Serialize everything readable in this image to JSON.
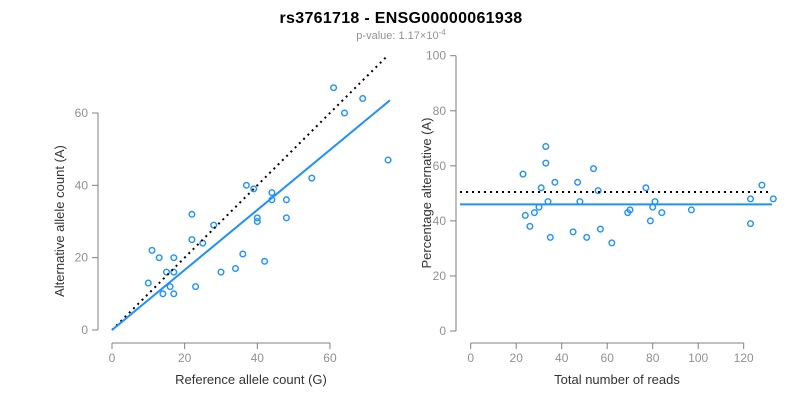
{
  "title": "rs3761718 - ENSG00000061938",
  "subtitle": {
    "base": "p-value: 1.17×10",
    "exp": "-4"
  },
  "colors": {
    "accent_blue": "#1E90FF",
    "axis_gray": "#808080",
    "tick_label_gray": "#919191",
    "axis_title_dark": "#333333",
    "reference_line_black": "#000000"
  },
  "chart_data": [
    {
      "type": "scatter",
      "title": "rs3761718 - ENSG00000061938",
      "subtitle": "p-value: 1.17×10^-4",
      "xlabel": "Reference allele count (G)",
      "ylabel": "Alternative allele count (A)",
      "xticks": [
        0,
        20,
        40,
        60
      ],
      "yticks": [
        0,
        20,
        40,
        60
      ],
      "xlim": [
        0,
        77
      ],
      "ylim": [
        0,
        70
      ],
      "grid": false,
      "point_color": "#1E90FF",
      "points": [
        [
          11,
          22
        ],
        [
          13,
          20
        ],
        [
          17,
          20
        ],
        [
          15,
          16
        ],
        [
          17,
          16
        ],
        [
          10,
          13
        ],
        [
          16,
          12
        ],
        [
          14,
          10
        ],
        [
          17,
          10
        ],
        [
          22,
          25
        ],
        [
          25,
          24
        ],
        [
          22,
          32
        ],
        [
          28,
          29
        ],
        [
          23,
          12
        ],
        [
          30,
          16
        ],
        [
          34,
          17
        ],
        [
          36,
          21
        ],
        [
          42,
          19
        ],
        [
          37,
          40
        ],
        [
          39,
          39
        ],
        [
          44,
          38
        ],
        [
          44,
          36
        ],
        [
          48,
          36
        ],
        [
          40,
          31
        ],
        [
          40,
          30
        ],
        [
          48,
          31
        ],
        [
          55,
          42
        ],
        [
          61,
          67
        ],
        [
          69,
          64
        ],
        [
          64,
          60
        ],
        [
          76,
          47
        ]
      ],
      "lines": [
        {
          "name": "identity",
          "style": "dotted",
          "color": "#000000",
          "x1": 0,
          "y1": 0,
          "x2": 75.5,
          "y2": 75.5
        },
        {
          "name": "regression",
          "style": "solid",
          "color": "#1E90FF",
          "x1": 0,
          "y1": 0,
          "x2": 76.5,
          "y2": 63.5
        }
      ]
    },
    {
      "type": "scatter",
      "xlabel": "Total number of reads",
      "ylabel": "Percentage alternative (A)",
      "xticks": [
        0,
        20,
        40,
        60,
        80,
        100,
        120
      ],
      "yticks": [
        0,
        20,
        40,
        60,
        80,
        100
      ],
      "xlim": [
        0,
        135
      ],
      "ylim": [
        0,
        100
      ],
      "grid": false,
      "point_color": "#1E90FF",
      "points": [
        [
          33,
          67
        ],
        [
          33,
          61
        ],
        [
          23,
          57
        ],
        [
          54,
          59
        ],
        [
          37,
          54
        ],
        [
          47,
          54
        ],
        [
          31,
          52
        ],
        [
          56,
          51
        ],
        [
          34,
          47
        ],
        [
          48,
          47
        ],
        [
          30,
          45
        ],
        [
          28,
          43
        ],
        [
          24,
          42
        ],
        [
          26,
          38
        ],
        [
          35,
          34
        ],
        [
          45,
          36
        ],
        [
          51,
          34
        ],
        [
          57,
          37
        ],
        [
          62,
          32
        ],
        [
          70,
          44
        ],
        [
          69,
          43
        ],
        [
          77,
          52
        ],
        [
          80,
          45
        ],
        [
          81,
          47
        ],
        [
          84,
          43
        ],
        [
          79,
          40
        ],
        [
          97,
          44
        ],
        [
          123,
          48
        ],
        [
          128,
          53
        ],
        [
          133,
          48
        ],
        [
          123,
          39
        ]
      ],
      "hlines": [
        {
          "name": "fifty-percent-reference",
          "style": "dotted",
          "color": "#000000",
          "y": 50.5
        },
        {
          "name": "mean-percentage",
          "style": "solid",
          "color": "#1E90FF",
          "y": 46
        }
      ]
    }
  ]
}
